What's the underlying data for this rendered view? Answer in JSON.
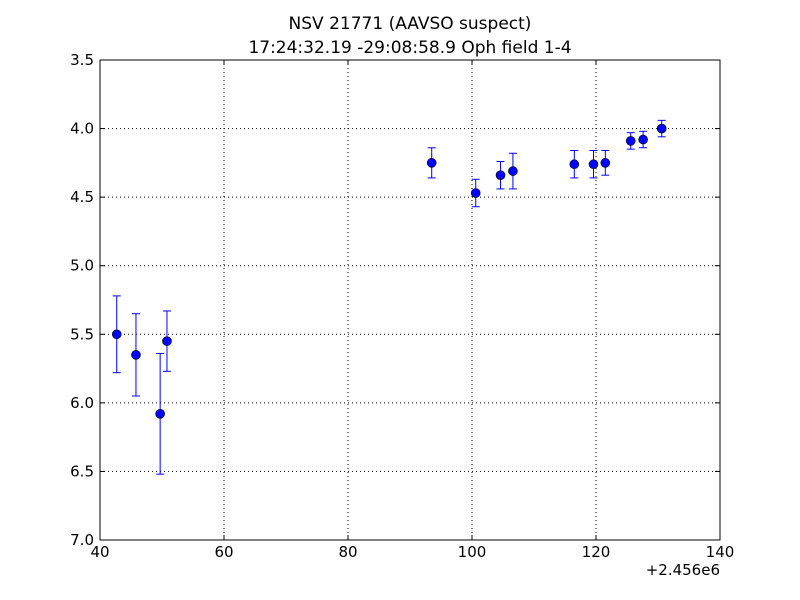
{
  "chart_data": {
    "type": "scatter",
    "title_line1": "NSV 21771 (AAVSO suspect)",
    "title_line2": "17:24:32.19 -29:08:58.9 Oph field 1-4",
    "xlabel": "",
    "ylabel": "",
    "x_offset_label": "+2.456e6",
    "xlim": [
      40,
      140
    ],
    "ylim": [
      7.0,
      3.5
    ],
    "y_inverted": true,
    "grid": true,
    "x_ticks": [
      40,
      60,
      80,
      100,
      120,
      140
    ],
    "x_tick_labels": [
      "40",
      "60",
      "80",
      "100",
      "120",
      "140"
    ],
    "y_ticks": [
      3.5,
      4.0,
      4.5,
      5.0,
      5.5,
      6.0,
      6.5,
      7.0
    ],
    "y_tick_labels": [
      "3.5",
      "4.0",
      "4.5",
      "5.0",
      "5.5",
      "6.0",
      "6.5",
      "7.0"
    ],
    "marker_color": "#0000ff",
    "points": [
      {
        "x": 42.7,
        "y": 5.5,
        "err": 0.28
      },
      {
        "x": 45.8,
        "y": 5.65,
        "err": 0.3
      },
      {
        "x": 49.7,
        "y": 6.08,
        "err": 0.44
      },
      {
        "x": 50.8,
        "y": 5.55,
        "err": 0.22
      },
      {
        "x": 93.5,
        "y": 4.25,
        "err": 0.11
      },
      {
        "x": 100.6,
        "y": 4.47,
        "err": 0.1
      },
      {
        "x": 104.6,
        "y": 4.34,
        "err": 0.1
      },
      {
        "x": 106.6,
        "y": 4.31,
        "err": 0.13
      },
      {
        "x": 116.5,
        "y": 4.26,
        "err": 0.1
      },
      {
        "x": 119.6,
        "y": 4.26,
        "err": 0.1
      },
      {
        "x": 121.5,
        "y": 4.25,
        "err": 0.09
      },
      {
        "x": 125.6,
        "y": 4.09,
        "err": 0.06
      },
      {
        "x": 127.6,
        "y": 4.08,
        "err": 0.06
      },
      {
        "x": 130.6,
        "y": 4.0,
        "err": 0.06
      }
    ]
  }
}
